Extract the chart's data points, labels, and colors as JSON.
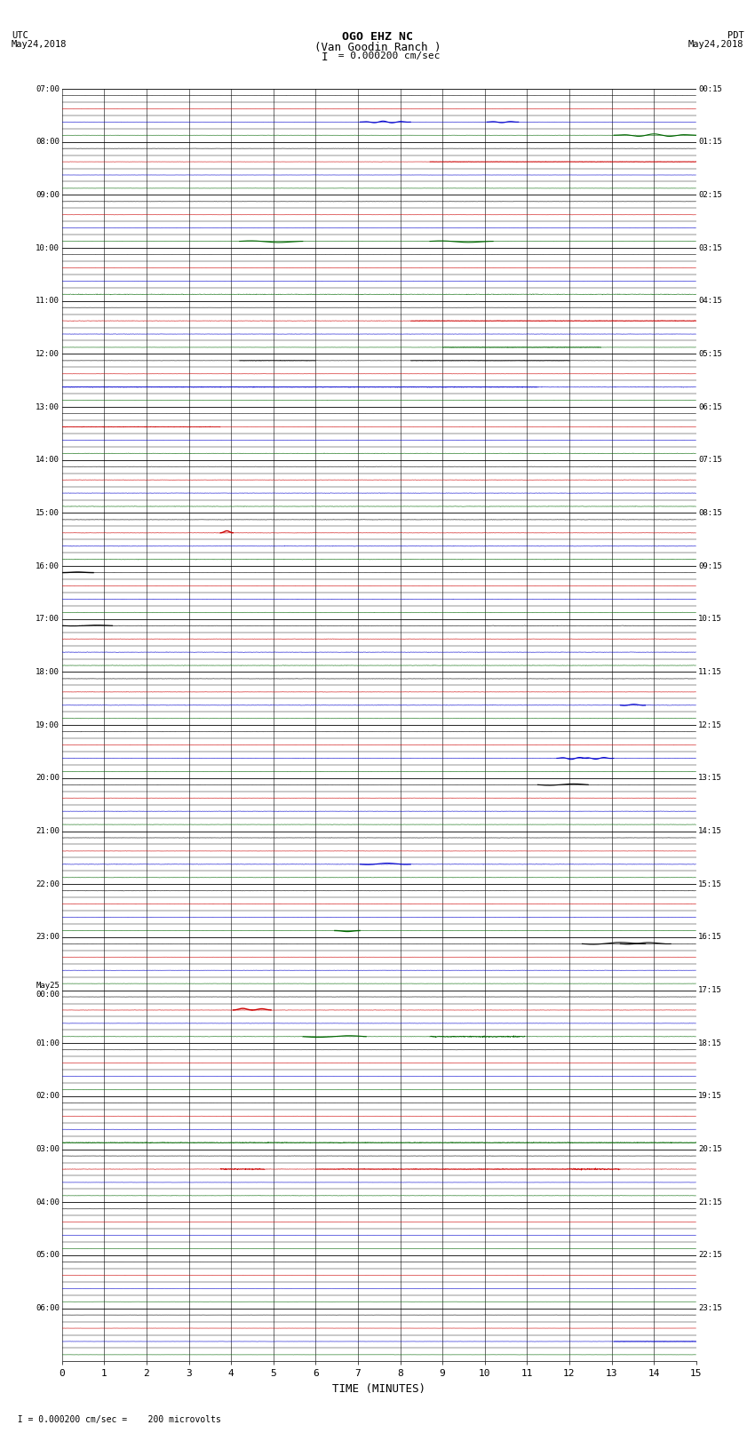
{
  "title_line1": "OGO EHZ NC",
  "title_line2": "(Van Goodin Ranch )",
  "title_line3": "I = 0.000200 cm/sec",
  "left_top_label": "UTC",
  "left_date_label": "May24,2018",
  "right_top_label": "PDT",
  "right_date_label": "May24,2018",
  "xlabel": "TIME (MINUTES)",
  "footnote": "  I = 0.000200 cm/sec =    200 microvolts",
  "utc_labels": [
    "07:00",
    "08:00",
    "09:00",
    "10:00",
    "11:00",
    "12:00",
    "13:00",
    "14:00",
    "15:00",
    "16:00",
    "17:00",
    "18:00",
    "19:00",
    "20:00",
    "21:00",
    "22:00",
    "23:00",
    "May25\n00:00",
    "01:00",
    "02:00",
    "03:00",
    "04:00",
    "05:00",
    "06:00"
  ],
  "pdt_labels": [
    "00:15",
    "01:15",
    "02:15",
    "03:15",
    "04:15",
    "05:15",
    "06:15",
    "07:15",
    "08:15",
    "09:15",
    "10:15",
    "11:15",
    "12:15",
    "13:15",
    "14:15",
    "15:15",
    "16:15",
    "17:15",
    "18:15",
    "19:15",
    "20:15",
    "21:15",
    "22:15",
    "23:15"
  ],
  "n_rows": 96,
  "n_hour_groups": 24,
  "x_min": 0,
  "x_max": 15,
  "x_ticks": [
    0,
    1,
    2,
    3,
    4,
    5,
    6,
    7,
    8,
    9,
    10,
    11,
    12,
    13,
    14,
    15
  ],
  "background_color": "#ffffff",
  "grid_color": "#000000",
  "trace_colors": [
    "#000000",
    "#cc0000",
    "#0000cc",
    "#006600"
  ],
  "amplitude_scale": 0.28,
  "noise_level": 0.012,
  "seed": 42
}
